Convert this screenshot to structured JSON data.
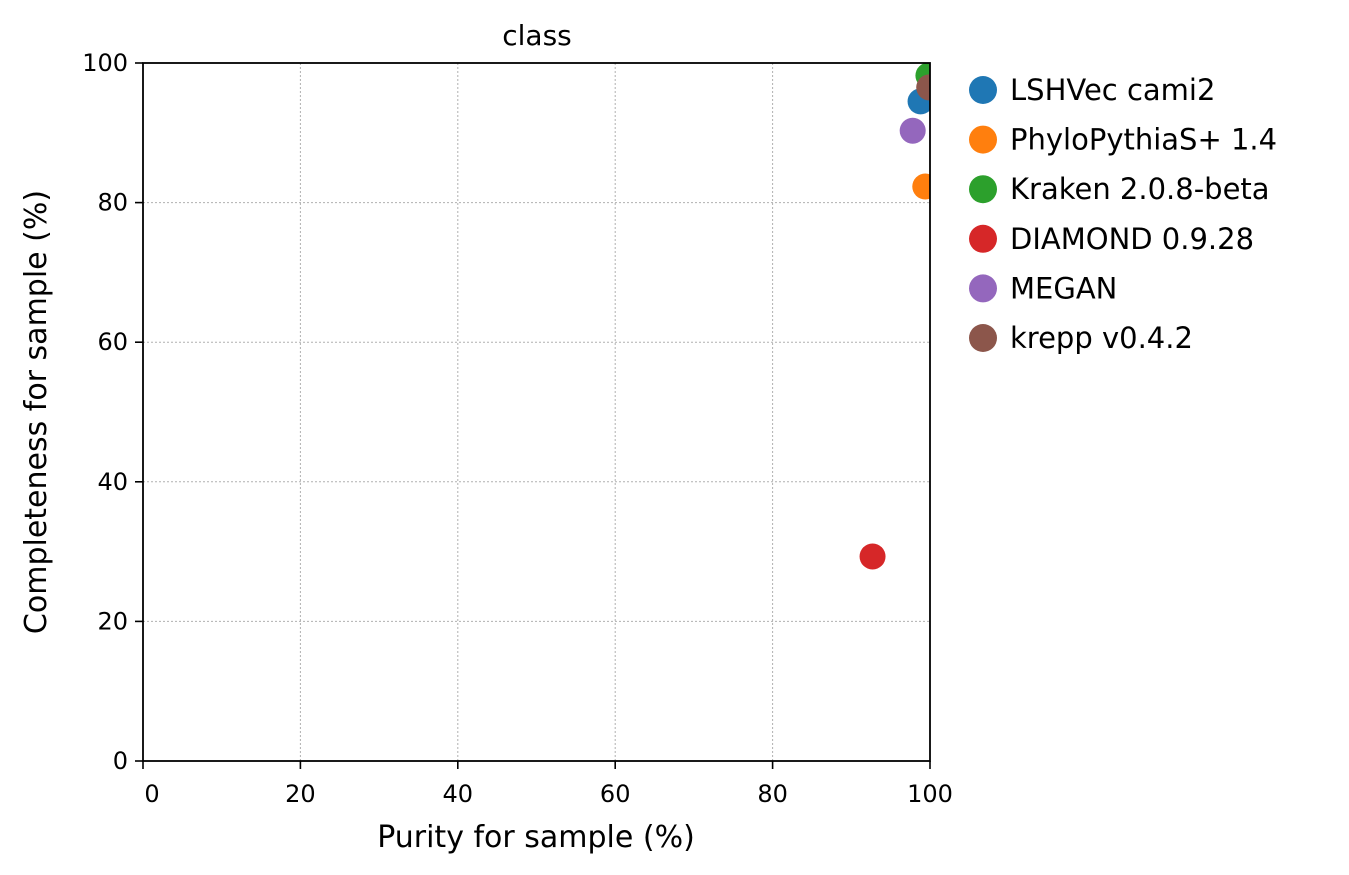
{
  "chart_data": {
    "type": "scatter",
    "title": "class",
    "xlabel": "Purity for sample (%)",
    "ylabel": "Completeness for sample (%)",
    "xlim": [
      0,
      100
    ],
    "ylim": [
      0,
      100
    ],
    "xticks": [
      "0",
      "20",
      "40",
      "60",
      "80",
      "100"
    ],
    "yticks": [
      "0",
      "20",
      "40",
      "60",
      "80",
      "100"
    ],
    "grid": true,
    "legend_position": "outside-right",
    "series": [
      {
        "name": "LSHVec cami2",
        "color": "#1f77b4",
        "x": 98.8,
        "y": 94.5
      },
      {
        "name": "PhyloPythiaS+ 1.4",
        "color": "#ff7f0e",
        "x": 99.4,
        "y": 82.3
      },
      {
        "name": "Kraken 2.0.8-beta",
        "color": "#2ca02c",
        "x": 99.8,
        "y": 98.2
      },
      {
        "name": "DIAMOND 0.9.28",
        "color": "#d62728",
        "x": 92.7,
        "y": 29.3
      },
      {
        "name": "MEGAN",
        "color": "#9467bd",
        "x": 97.8,
        "y": 90.3
      },
      {
        "name": "krepp v0.4.2",
        "color": "#8c564b",
        "x": 99.9,
        "y": 96.5
      }
    ]
  }
}
